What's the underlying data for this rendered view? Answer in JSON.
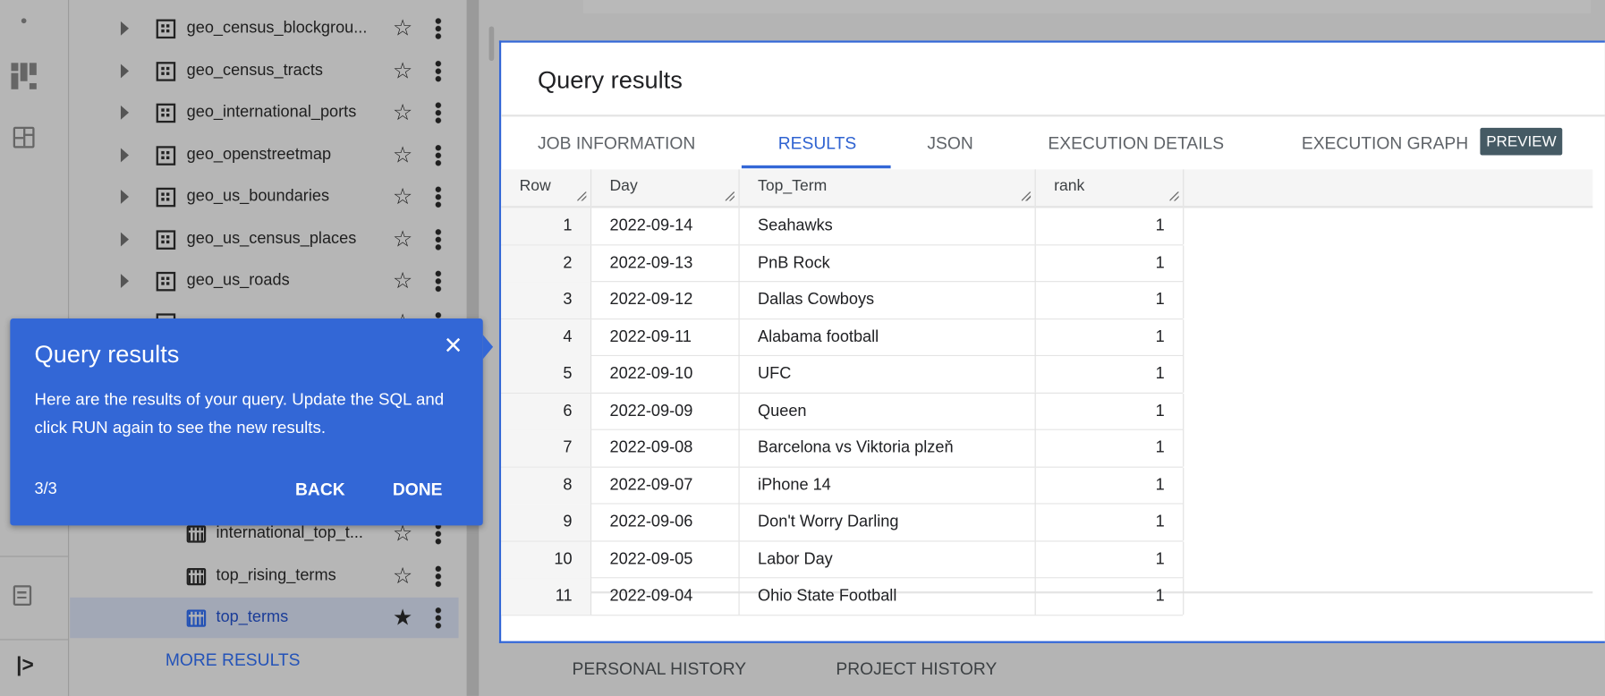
{
  "sidebar": {
    "items": [
      {
        "label": "geo_census_blockgrou...",
        "type": "dataset",
        "starred": false
      },
      {
        "label": "geo_census_tracts",
        "type": "dataset",
        "starred": false
      },
      {
        "label": "geo_international_ports",
        "type": "dataset",
        "starred": false
      },
      {
        "label": "geo_openstreetmap",
        "type": "dataset",
        "starred": false
      },
      {
        "label": "geo_us_boundaries",
        "type": "dataset",
        "starred": false
      },
      {
        "label": "geo_us_census_places",
        "type": "dataset",
        "starred": false
      },
      {
        "label": "geo_us_roads",
        "type": "dataset",
        "starred": false
      },
      {
        "label": "international_top_t...",
        "type": "table",
        "starred": false
      },
      {
        "label": "top_rising_terms",
        "type": "table",
        "starred": false
      },
      {
        "label": "top_terms",
        "type": "table",
        "starred": true,
        "selected": true
      }
    ],
    "more_results": "MORE RESULTS"
  },
  "tooltip": {
    "title": "Query results",
    "body": "Here are the results of your query. Update the SQL and click RUN again to see the new results.",
    "step": "3/3",
    "back": "BACK",
    "done": "DONE",
    "close_icon": "×",
    "color": "#3367d6"
  },
  "panel": {
    "title": "Query results",
    "tabs": [
      {
        "label": "JOB INFORMATION"
      },
      {
        "label": "RESULTS",
        "active": true
      },
      {
        "label": "JSON"
      },
      {
        "label": "EXECUTION DETAILS"
      },
      {
        "label": "EXECUTION GRAPH"
      }
    ],
    "preview_badge": "PREVIEW",
    "table": {
      "columns": [
        "Row",
        "Day",
        "Top_Term",
        "rank"
      ],
      "rows": [
        [
          "1",
          "2022-09-14",
          "Seahawks",
          "1"
        ],
        [
          "2",
          "2022-09-13",
          "PnB Rock",
          "1"
        ],
        [
          "3",
          "2022-09-12",
          "Dallas Cowboys",
          "1"
        ],
        [
          "4",
          "2022-09-11",
          "Alabama football",
          "1"
        ],
        [
          "5",
          "2022-09-10",
          "UFC",
          "1"
        ],
        [
          "6",
          "2022-09-09",
          "Queen",
          "1"
        ],
        [
          "7",
          "2022-09-08",
          "Barcelona vs Viktoria plzeň",
          "1"
        ],
        [
          "8",
          "2022-09-07",
          "iPhone 14",
          "1"
        ],
        [
          "9",
          "2022-09-06",
          "Don't Worry Darling",
          "1"
        ],
        [
          "10",
          "2022-09-05",
          "Labor Day",
          "1"
        ],
        [
          "11",
          "2022-09-04",
          "Ohio State Football",
          "1"
        ]
      ]
    }
  },
  "history_tabs": [
    "PERSONAL HISTORY",
    "PROJECT HISTORY"
  ]
}
